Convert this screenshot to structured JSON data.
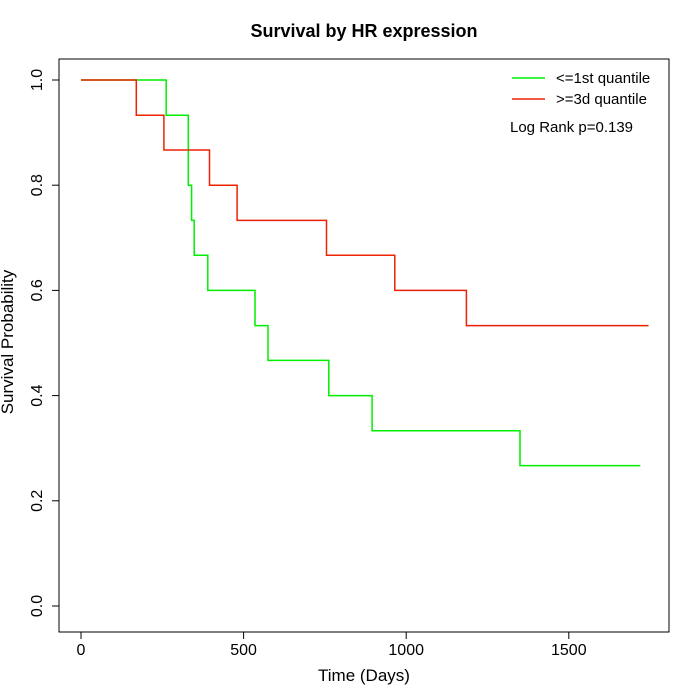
{
  "chart_data": {
    "type": "line",
    "title": "Survival by HR expression",
    "xlabel": "Time (Days)",
    "ylabel": "Survival Probability",
    "xlim": [
      0,
      1750
    ],
    "ylim": [
      0,
      1.0
    ],
    "x_ticks": [
      {
        "value": 0,
        "label": "0"
      },
      {
        "value": 500,
        "label": "500"
      },
      {
        "value": 1000,
        "label": "1000"
      },
      {
        "value": 1500,
        "label": "1500"
      }
    ],
    "y_ticks": [
      {
        "value": 0.0,
        "label": "0.0"
      },
      {
        "value": 0.2,
        "label": "0.2"
      },
      {
        "value": 0.4,
        "label": "0.4"
      },
      {
        "value": 0.6,
        "label": "0.6"
      },
      {
        "value": 0.8,
        "label": "0.8"
      },
      {
        "value": 1.0,
        "label": "1.0"
      }
    ],
    "grid": false,
    "legend_position": "top-right",
    "annotation": "Log Rank p=0.139",
    "series": [
      {
        "name": "<=1st quantile",
        "color": "#00ee00",
        "step": true,
        "points": [
          [
            0,
            1.0
          ],
          [
            262,
            1.0
          ],
          [
            262,
            0.933
          ],
          [
            330,
            0.933
          ],
          [
            330,
            0.8
          ],
          [
            340,
            0.8
          ],
          [
            340,
            0.733
          ],
          [
            348,
            0.733
          ],
          [
            348,
            0.667
          ],
          [
            390,
            0.667
          ],
          [
            390,
            0.6
          ],
          [
            535,
            0.6
          ],
          [
            535,
            0.533
          ],
          [
            575,
            0.533
          ],
          [
            575,
            0.467
          ],
          [
            762,
            0.467
          ],
          [
            762,
            0.4
          ],
          [
            895,
            0.4
          ],
          [
            895,
            0.333
          ],
          [
            1350,
            0.333
          ],
          [
            1350,
            0.267
          ],
          [
            1720,
            0.267
          ]
        ]
      },
      {
        "name": ">=3d quantile",
        "color": "#ee2200",
        "step": true,
        "points": [
          [
            0,
            1.0
          ],
          [
            170,
            1.0
          ],
          [
            170,
            0.933
          ],
          [
            255,
            0.933
          ],
          [
            255,
            0.867
          ],
          [
            395,
            0.867
          ],
          [
            395,
            0.8
          ],
          [
            480,
            0.8
          ],
          [
            480,
            0.733
          ],
          [
            755,
            0.733
          ],
          [
            755,
            0.667
          ],
          [
            965,
            0.667
          ],
          [
            965,
            0.6
          ],
          [
            1185,
            0.6
          ],
          [
            1185,
            0.533
          ],
          [
            1745,
            0.533
          ]
        ]
      }
    ]
  }
}
